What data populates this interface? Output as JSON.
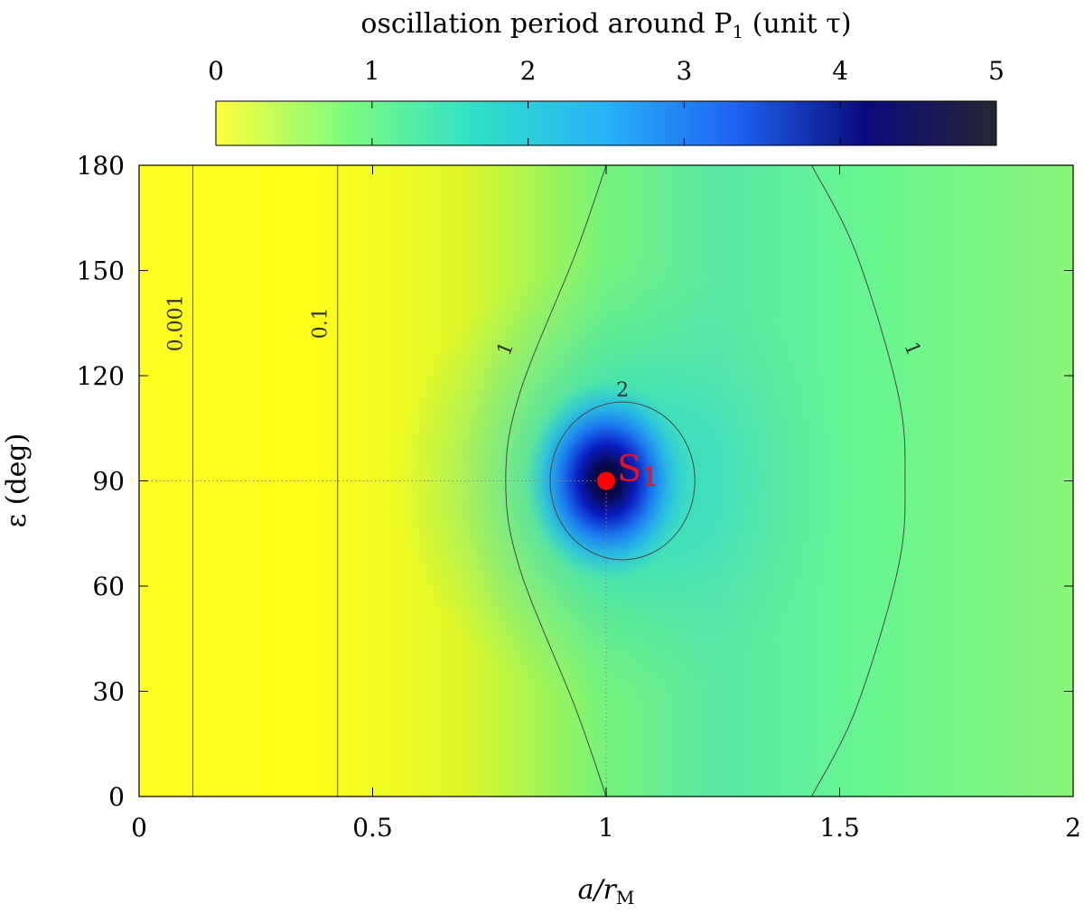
{
  "chart_data": {
    "type": "heatmap",
    "colorbar": {
      "title": "oscillation period around P",
      "title_subscript": "1",
      "title_suffix": " (unit τ)",
      "ticks": [
        "0",
        "1",
        "2",
        "3",
        "4",
        "5"
      ],
      "range": [
        0,
        5
      ],
      "colors": [
        "#ffff3a",
        "#7dfc7d",
        "#2fe0c8",
        "#27b2f5",
        "#1e63f0",
        "#0a0a7a",
        "#262633"
      ]
    },
    "xlabel": "a/r",
    "xlabel_subscript": "M",
    "ylabel": "ε (deg)",
    "xlim": [
      0,
      2
    ],
    "ylim": [
      0,
      180
    ],
    "xticks": [
      0,
      0.5,
      1,
      1.5,
      2
    ],
    "xtick_labels": [
      "0",
      "0.5",
      "1",
      "1.5",
      "2"
    ],
    "yticks": [
      0,
      30,
      60,
      90,
      120,
      150,
      180
    ],
    "ytick_labels": [
      "0",
      "30",
      "60",
      "90",
      "120",
      "150",
      "180"
    ],
    "contours": [
      {
        "level": "0.001",
        "x": 0.115,
        "type": "vertical"
      },
      {
        "level": "0.1",
        "x": 0.425,
        "type": "vertical"
      },
      {
        "level": "1",
        "points": [
          [
            1.0,
            0
          ],
          [
            0.935,
            25
          ],
          [
            0.815,
            65
          ],
          [
            0.785,
            90
          ],
          [
            0.815,
            115
          ],
          [
            0.935,
            155
          ],
          [
            1.0,
            180
          ]
        ]
      },
      {
        "level": "1",
        "points": [
          [
            1.44,
            0
          ],
          [
            1.535,
            25
          ],
          [
            1.625,
            65
          ],
          [
            1.64,
            90
          ],
          [
            1.625,
            115
          ],
          [
            1.535,
            155
          ],
          [
            1.44,
            180
          ]
        ]
      },
      {
        "level": "2",
        "center": [
          1.035,
          90
        ],
        "rx": 0.155,
        "ry": 22.5
      }
    ],
    "marker": {
      "label": "S",
      "label_subscript": "1",
      "x": 1.0,
      "y": 90,
      "color": "#ff0000"
    },
    "guide_lines": {
      "x": 1.0,
      "y": 90
    }
  }
}
